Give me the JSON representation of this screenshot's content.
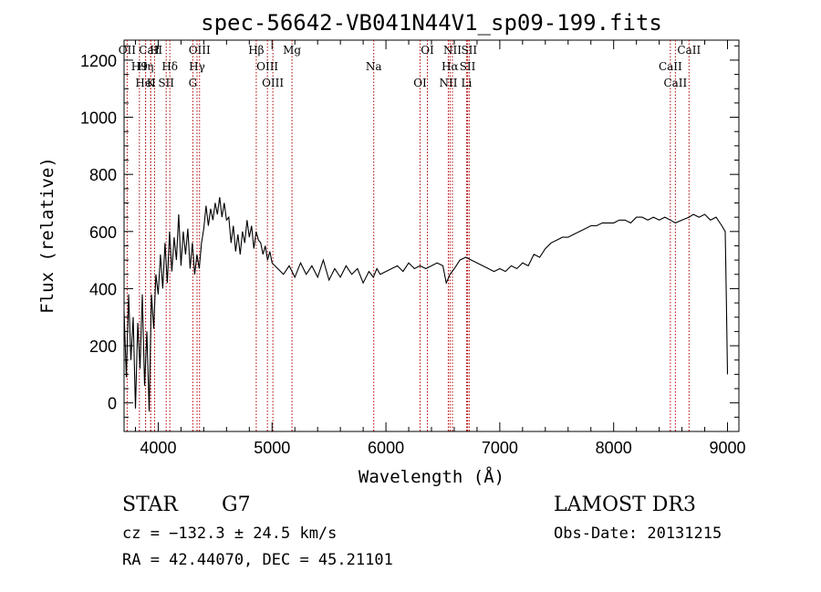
{
  "chart_data": {
    "type": "line",
    "title": "spec-56642-VB041N44V1_sp09-199.fits",
    "xlabel": "Wavelength (Å)",
    "ylabel": "Flux (relative)",
    "xlim": [
      3700,
      9100
    ],
    "ylim": [
      -100,
      1270
    ],
    "xticks": [
      4000,
      5000,
      6000,
      7000,
      8000,
      9000
    ],
    "yticks": [
      0,
      200,
      400,
      600,
      800,
      1000,
      1200
    ],
    "grid": false,
    "series": [
      {
        "name": "flux",
        "x": [
          3700,
          3720,
          3740,
          3760,
          3780,
          3800,
          3820,
          3840,
          3860,
          3880,
          3900,
          3920,
          3940,
          3960,
          3980,
          4000,
          4020,
          4040,
          4060,
          4080,
          4100,
          4120,
          4140,
          4160,
          4180,
          4200,
          4220,
          4240,
          4260,
          4280,
          4300,
          4320,
          4340,
          4360,
          4380,
          4400,
          4420,
          4440,
          4460,
          4480,
          4500,
          4520,
          4540,
          4560,
          4580,
          4600,
          4620,
          4640,
          4660,
          4680,
          4700,
          4720,
          4740,
          4760,
          4780,
          4800,
          4820,
          4840,
          4860,
          4880,
          4900,
          4920,
          4940,
          4960,
          4980,
          5000,
          5050,
          5100,
          5150,
          5200,
          5250,
          5300,
          5350,
          5400,
          5450,
          5500,
          5550,
          5600,
          5650,
          5700,
          5750,
          5800,
          5850,
          5890,
          5920,
          5950,
          6000,
          6050,
          6100,
          6150,
          6200,
          6250,
          6300,
          6350,
          6400,
          6450,
          6500,
          6530,
          6563,
          6600,
          6650,
          6700,
          6750,
          6800,
          6850,
          6900,
          6950,
          7000,
          7050,
          7100,
          7150,
          7200,
          7250,
          7300,
          7350,
          7400,
          7450,
          7500,
          7550,
          7600,
          7650,
          7700,
          7750,
          7800,
          7850,
          7900,
          7950,
          8000,
          8050,
          8100,
          8150,
          8200,
          8250,
          8300,
          8350,
          8400,
          8450,
          8498,
          8542,
          8600,
          8662,
          8700,
          8750,
          8800,
          8850,
          8900,
          8950,
          8980,
          8990,
          9000
        ],
        "y": [
          320,
          90,
          380,
          150,
          300,
          -20,
          280,
          120,
          380,
          60,
          250,
          -30,
          380,
          260,
          450,
          380,
          520,
          400,
          560,
          420,
          600,
          460,
          580,
          500,
          660,
          480,
          600,
          520,
          610,
          470,
          560,
          450,
          520,
          470,
          560,
          610,
          690,
          620,
          680,
          640,
          700,
          660,
          720,
          650,
          700,
          640,
          650,
          560,
          620,
          530,
          590,
          520,
          600,
          560,
          640,
          580,
          620,
          540,
          600,
          570,
          560,
          520,
          550,
          500,
          530,
          490,
          470,
          450,
          480,
          440,
          490,
          450,
          480,
          440,
          500,
          430,
          470,
          440,
          480,
          450,
          470,
          420,
          460,
          440,
          470,
          450,
          460,
          470,
          480,
          460,
          490,
          470,
          480,
          470,
          480,
          490,
          480,
          420,
          450,
          470,
          500,
          510,
          500,
          490,
          480,
          470,
          460,
          470,
          460,
          480,
          470,
          490,
          480,
          520,
          510,
          540,
          560,
          570,
          580,
          580,
          590,
          600,
          610,
          620,
          620,
          630,
          630,
          630,
          640,
          640,
          630,
          650,
          650,
          640,
          650,
          640,
          650,
          640,
          630,
          640,
          650,
          660,
          650,
          660,
          640,
          650,
          620,
          600,
          350,
          100
        ],
        "color": "#000000"
      }
    ],
    "lines": [
      {
        "label": "OII",
        "x": 3727
      },
      {
        "label": "H9",
        "x": 3835
      },
      {
        "label": "K",
        "x": 3934
      },
      {
        "label": "CaII",
        "x": 3934
      },
      {
        "label": "Hη",
        "x": 3889
      },
      {
        "label": "HeI",
        "x": 3889
      },
      {
        "label": "H",
        "x": 3968
      },
      {
        "label": "Hδ",
        "x": 4102
      },
      {
        "label": "SII",
        "x": 4070
      },
      {
        "label": "OIII",
        "x": 4363
      },
      {
        "label": "Hγ",
        "x": 4341
      },
      {
        "label": "G",
        "x": 4304
      },
      {
        "label": "Hβ",
        "x": 4861
      },
      {
        "label": "OIII",
        "x": 4959
      },
      {
        "label": "OIII",
        "x": 5007
      },
      {
        "label": "Mg",
        "x": 5175
      },
      {
        "label": "Na",
        "x": 5893
      },
      {
        "label": "OI",
        "x": 6300
      },
      {
        "label": "OI",
        "x": 6364
      },
      {
        "label": "Hα",
        "x": 6563
      },
      {
        "label": "NII",
        "x": 6548
      },
      {
        "label": "NII",
        "x": 6584
      },
      {
        "label": "SII",
        "x": 6717
      },
      {
        "label": "Li",
        "x": 6708
      },
      {
        "label": "SII",
        "x": 6731
      },
      {
        "label": "CaII",
        "x": 8498
      },
      {
        "label": "CaII",
        "x": 8542
      },
      {
        "label": "CaII",
        "x": 8662
      }
    ]
  },
  "info": {
    "class_label": "STAR",
    "subclass": "G7",
    "survey": "LAMOST DR3",
    "cz": "cz = −132.3 ± 24.5 km/s",
    "obs_date": "Obs-Date: 20131215",
    "coords": "RA =  42.44070, DEC =  45.21101"
  }
}
